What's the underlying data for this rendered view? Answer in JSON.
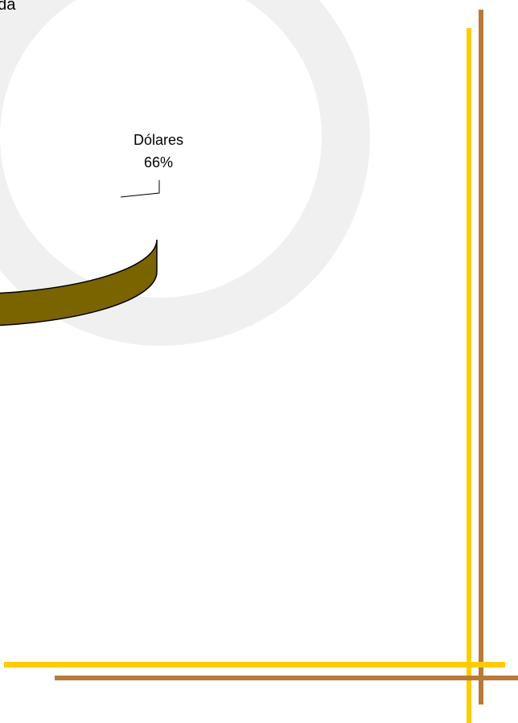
{
  "chart_data": {
    "type": "pie",
    "title": "eda",
    "categories": [
      "Dólares"
    ],
    "values": [
      66
    ],
    "value_labels": [
      "66%"
    ],
    "colors": [
      "#ffcc00"
    ],
    "side_colors": [
      "#7a6400"
    ]
  }
}
